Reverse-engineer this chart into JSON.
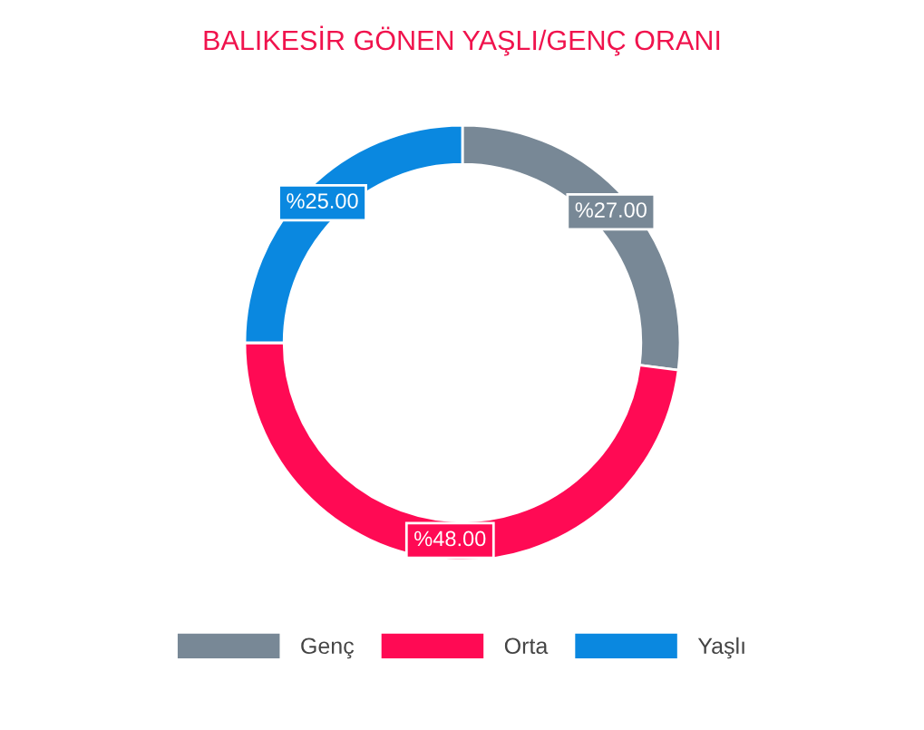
{
  "chart_data": {
    "type": "donut",
    "title": "BALIKESİR GÖNEN YAŞLI/GENÇ ORANI",
    "categories": [
      "Genç",
      "Orta",
      "Yaşlı"
    ],
    "values": [
      27,
      48,
      25
    ],
    "colors": [
      "#788896",
      "#ff0a54",
      "#0a88e0"
    ],
    "value_labels": [
      "%27.00",
      "%48.00",
      "%25.00"
    ],
    "legend": "bottom"
  }
}
